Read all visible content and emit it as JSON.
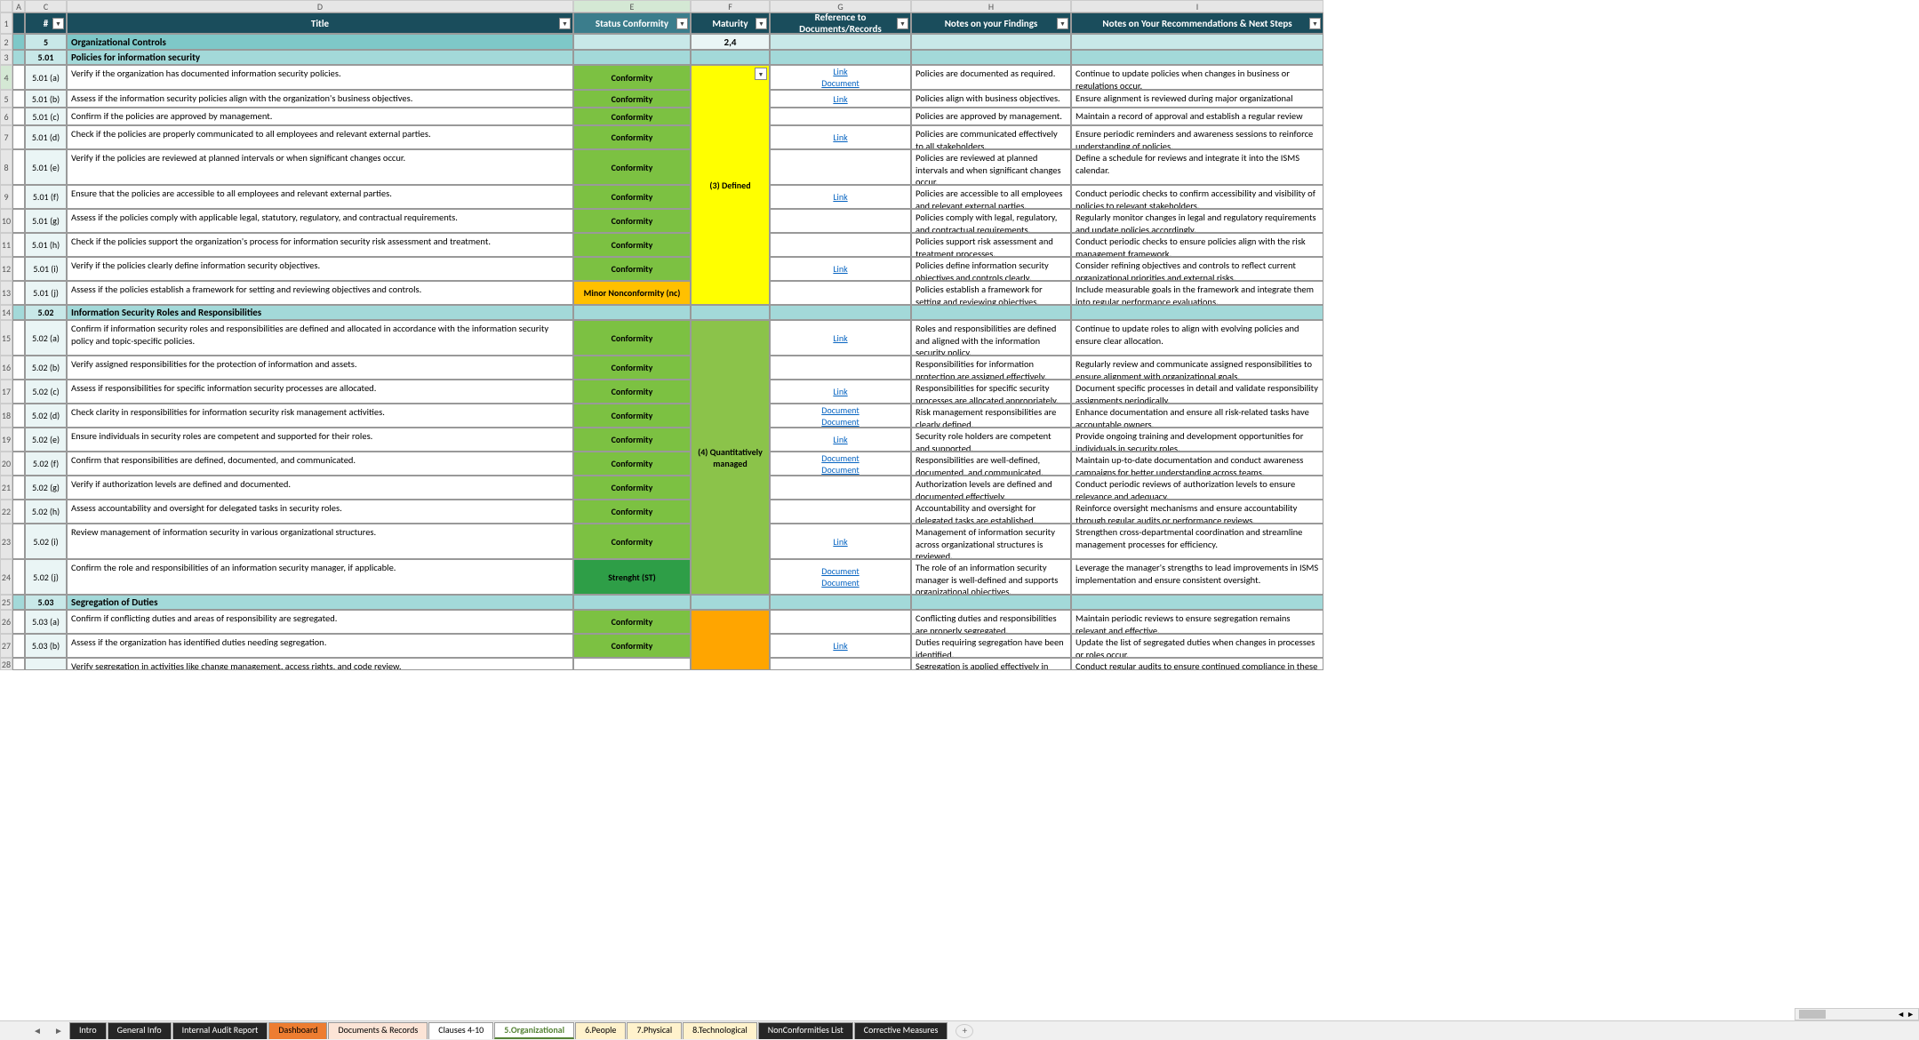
{
  "cols": [
    "A",
    "C",
    "#",
    "D",
    "E",
    "F",
    "G",
    "H",
    "I"
  ],
  "colLabels": {
    "D": "Title",
    "E": "Status Conformity",
    "F": "Maturity",
    "G": "Reference to Documents/Records",
    "H": "Notes on your Findings",
    "I": "Notes on Your Recommendations & Next Steps"
  },
  "section": {
    "num": "5",
    "title": "Organizational Controls",
    "maturity": "2,4"
  },
  "subsections": [
    {
      "num": "5.01",
      "title": "Policies for information security",
      "maturity": "(3) Defined",
      "matClass": "mat-yellow",
      "items": [
        {
          "n": "5.01 (a)",
          "t": "Verify if the organization has documented information security policies.",
          "s": "Conformity",
          "sc": "status-conf",
          "r": [
            "Link",
            "Document"
          ],
          "h": "Policies are documented as required.",
          "i": "Continue to update policies when changes in business or regulations occur."
        },
        {
          "n": "5.01 (b)",
          "t": "Assess if the information security policies align with the organization's business objectives.",
          "s": "Conformity",
          "sc": "status-conf",
          "r": [
            "Link"
          ],
          "h": "Policies align with business objectives.",
          "i": "Ensure alignment is reviewed during major organizational changes."
        },
        {
          "n": "5.01 (c)",
          "t": "Confirm if the policies are approved by management.",
          "s": "Conformity",
          "sc": "status-conf",
          "r": [],
          "h": "Policies are approved by management.",
          "i": "Maintain a record of approval and establish a regular review cycle."
        },
        {
          "n": "5.01 (d)",
          "t": "Check if the policies are properly communicated to all employees and relevant external parties.",
          "s": "Conformity",
          "sc": "status-conf",
          "r": [
            "Link"
          ],
          "h": "Policies are communicated effectively to all stakeholders.",
          "i": "Ensure periodic reminders and awareness sessions to reinforce understanding of policies."
        },
        {
          "n": "5.01 (e)",
          "t": "Verify if the policies are reviewed at planned intervals or when significant changes occur.",
          "s": "Conformity",
          "sc": "status-conf",
          "r": [],
          "h": "Policies are reviewed at planned intervals and when significant changes occur.",
          "i": "Define a schedule for reviews and integrate it into the ISMS calendar."
        },
        {
          "n": "5.01 (f)",
          "t": "Ensure that the policies are accessible to all employees and relevant external parties.",
          "s": "Conformity",
          "sc": "status-conf",
          "r": [
            "Link"
          ],
          "h": "Policies are accessible to all employees and relevant external parties.",
          "i": "Conduct periodic checks to confirm accessibility and visibility of policies to relevant stakeholders."
        },
        {
          "n": "5.01 (g)",
          "t": "Assess if the policies comply with applicable legal, statutory, regulatory, and contractual requirements.",
          "s": "Conformity",
          "sc": "status-conf",
          "r": [],
          "h": "Policies comply with legal, regulatory, and contractual requirements.",
          "i": "Regularly monitor changes in legal and regulatory requirements and update policies accordingly."
        },
        {
          "n": "5.01 (h)",
          "t": "Check if the policies support the organization's process for information security risk assessment and treatment.",
          "s": "Conformity",
          "sc": "status-conf",
          "r": [],
          "h": "Policies support risk assessment and treatment processes.",
          "i": "Conduct periodic checks to ensure policies align with the risk management framework."
        },
        {
          "n": "5.01 (i)",
          "t": "Verify if the policies clearly define information security objectives.",
          "s": "Conformity",
          "sc": "status-conf",
          "r": [
            "Link"
          ],
          "h": "Policies define information security objectives and controls clearly.",
          "i": "Consider refining objectives and controls to reflect current organizational priorities and external risks."
        },
        {
          "n": "5.01 (j)",
          "t": "Assess if the policies establish a framework for setting and reviewing objectives and controls.",
          "s": "Minor Nonconformity (nc)",
          "sc": "status-minor",
          "r": [],
          "h": "Policies establish a framework for setting and reviewing objectives.",
          "i": "Include measurable goals in the framework and integrate them into regular performance evaluations."
        }
      ]
    },
    {
      "num": "5.02",
      "title": "Information Security Roles and Responsibilities",
      "maturity": "(4) Quantitatively managed",
      "matClass": "mat-green",
      "items": [
        {
          "n": "5.02 (a)",
          "t": "Confirm if information security roles and responsibilities are defined and allocated in accordance with the information security policy and topic-specific policies.",
          "s": "Conformity",
          "sc": "status-conf",
          "r": [
            "Link"
          ],
          "h": "Roles and responsibilities are defined and aligned with the information security policy.",
          "i": "Continue to update roles to align with evolving policies and ensure clear allocation."
        },
        {
          "n": "5.02 (b)",
          "t": "Verify assigned responsibilities for the protection of information and assets.",
          "s": "Conformity",
          "sc": "status-conf",
          "r": [],
          "h": "Responsibilities for information protection are assigned effectively.",
          "i": "Regularly review and communicate assigned responsibilities to ensure alignment with organizational goals."
        },
        {
          "n": "5.02 (c)",
          "t": "Assess if responsibilities for specific information security processes are allocated.",
          "s": "Conformity",
          "sc": "status-conf",
          "r": [
            "Link"
          ],
          "h": "Responsibilities for specific security processes are allocated appropriately.",
          "i": "Document specific processes in detail and validate responsibility assignments periodically."
        },
        {
          "n": "5.02 (d)",
          "t": "Check clarity in responsibilities for information security risk management activities.",
          "s": "Conformity",
          "sc": "status-conf",
          "r": [
            "Document",
            "Document"
          ],
          "h": "Risk management responsibilities are clearly defined.",
          "i": "Enhance documentation and ensure all risk-related tasks have accountable owners."
        },
        {
          "n": "5.02 (e)",
          "t": "Ensure individuals in security roles are competent and supported for their roles.",
          "s": "Conformity",
          "sc": "status-conf",
          "r": [
            "Link"
          ],
          "h": "Security role holders are competent and supported.",
          "i": "Provide ongoing training and development opportunities for individuals in security roles."
        },
        {
          "n": "5.02 (f)",
          "t": "Confirm that responsibilities are defined, documented, and communicated.",
          "s": "Conformity",
          "sc": "status-conf",
          "r": [
            "Document",
            "Document"
          ],
          "h": "Responsibilities are well-defined, documented, and communicated.",
          "i": "Maintain up-to-date documentation and conduct awareness campaigns for better understanding across teams."
        },
        {
          "n": "5.02 (g)",
          "t": "Verify if authorization levels are defined and documented.",
          "s": "Conformity",
          "sc": "status-conf",
          "r": [],
          "h": "Authorization levels are defined and documented effectively.",
          "i": "Conduct periodic reviews of authorization levels to ensure relevance and adequacy."
        },
        {
          "n": "5.02 (h)",
          "t": "Assess accountability and oversight for delegated tasks in security roles.",
          "s": "Conformity",
          "sc": "status-conf",
          "r": [],
          "h": "Accountability and oversight for delegated tasks are established.",
          "i": "Reinforce oversight mechanisms and ensure accountability through regular audits or performance reviews."
        },
        {
          "n": "5.02 (i)",
          "t": "Review management of information security in various organizational structures.",
          "s": "Conformity",
          "sc": "status-conf",
          "r": [
            "Link"
          ],
          "h": "Management of information security across organizational structures is reviewed.",
          "i": "Strengthen cross-departmental coordination and streamline management processes for efficiency."
        },
        {
          "n": "5.02 (j)",
          "t": "Confirm the role and responsibilities of an information security manager, if applicable.",
          "s": "Strenght (ST)",
          "sc": "status-str",
          "r": [
            "Document",
            "Document"
          ],
          "h": "The role of an information security manager is well-defined and supports organizational objectives.",
          "i": "Leverage the manager's strengths to lead improvements in ISMS implementation and ensure consistent oversight."
        }
      ]
    },
    {
      "num": "5.03",
      "title": "Segregation of Duties",
      "maturity": "",
      "matClass": "mat-orange",
      "items": [
        {
          "n": "5.03 (a)",
          "t": "Confirm if conflicting duties and areas of responsibility are segregated.",
          "s": "Conformity",
          "sc": "status-conf",
          "r": [],
          "h": "Conflicting duties and responsibilities are properly segregated.",
          "i": "Maintain periodic reviews to ensure segregation remains relevant and effective."
        },
        {
          "n": "5.03 (b)",
          "t": "Assess if the organization has identified duties needing segregation.",
          "s": "Conformity",
          "sc": "status-conf",
          "r": [
            "Link"
          ],
          "h": "Duties requiring segregation have been identified.",
          "i": "Update the list of segregated duties when changes in processes or roles occur."
        },
        {
          "n": "",
          "t": "Verify segregation in activities like change management, access rights, and code review.",
          "s": "",
          "sc": "",
          "r": [],
          "h": "Segregation is applied effectively in",
          "i": "Conduct regular audits to ensure continued compliance in these"
        }
      ]
    }
  ],
  "rowNums": [
    1,
    2,
    3,
    4,
    5,
    6,
    7,
    8,
    9,
    10,
    11,
    12,
    13,
    14,
    15,
    16,
    17,
    18,
    19,
    20,
    21,
    22,
    23,
    24,
    25,
    26,
    27,
    ""
  ],
  "heights": [
    24,
    18,
    17,
    28,
    20,
    20,
    27,
    40,
    27,
    27,
    27,
    27,
    27,
    17,
    40,
    27,
    27,
    27,
    27,
    27,
    27,
    27,
    40,
    40,
    17,
    27,
    27,
    14
  ],
  "tabs": [
    {
      "l": "Intro",
      "c": "tab-dark"
    },
    {
      "l": "General Info",
      "c": "tab-dark"
    },
    {
      "l": "Internal Audit Report",
      "c": "tab-dark"
    },
    {
      "l": "Dashboard",
      "c": "tab-orange"
    },
    {
      "l": "Documents & Records",
      "c": "tab-peach"
    },
    {
      "l": "Clauses 4-10",
      "c": "tab-white"
    },
    {
      "l": "5.Organizational",
      "c": "tab-active"
    },
    {
      "l": "6.People",
      "c": "tab-lorange"
    },
    {
      "l": "7.Physical",
      "c": "tab-lorange"
    },
    {
      "l": "8.Technological",
      "c": "tab-lorange"
    },
    {
      "l": "NonConformities List",
      "c": "tab-dark"
    },
    {
      "l": "Corrective Measures",
      "c": "tab-dark"
    }
  ]
}
